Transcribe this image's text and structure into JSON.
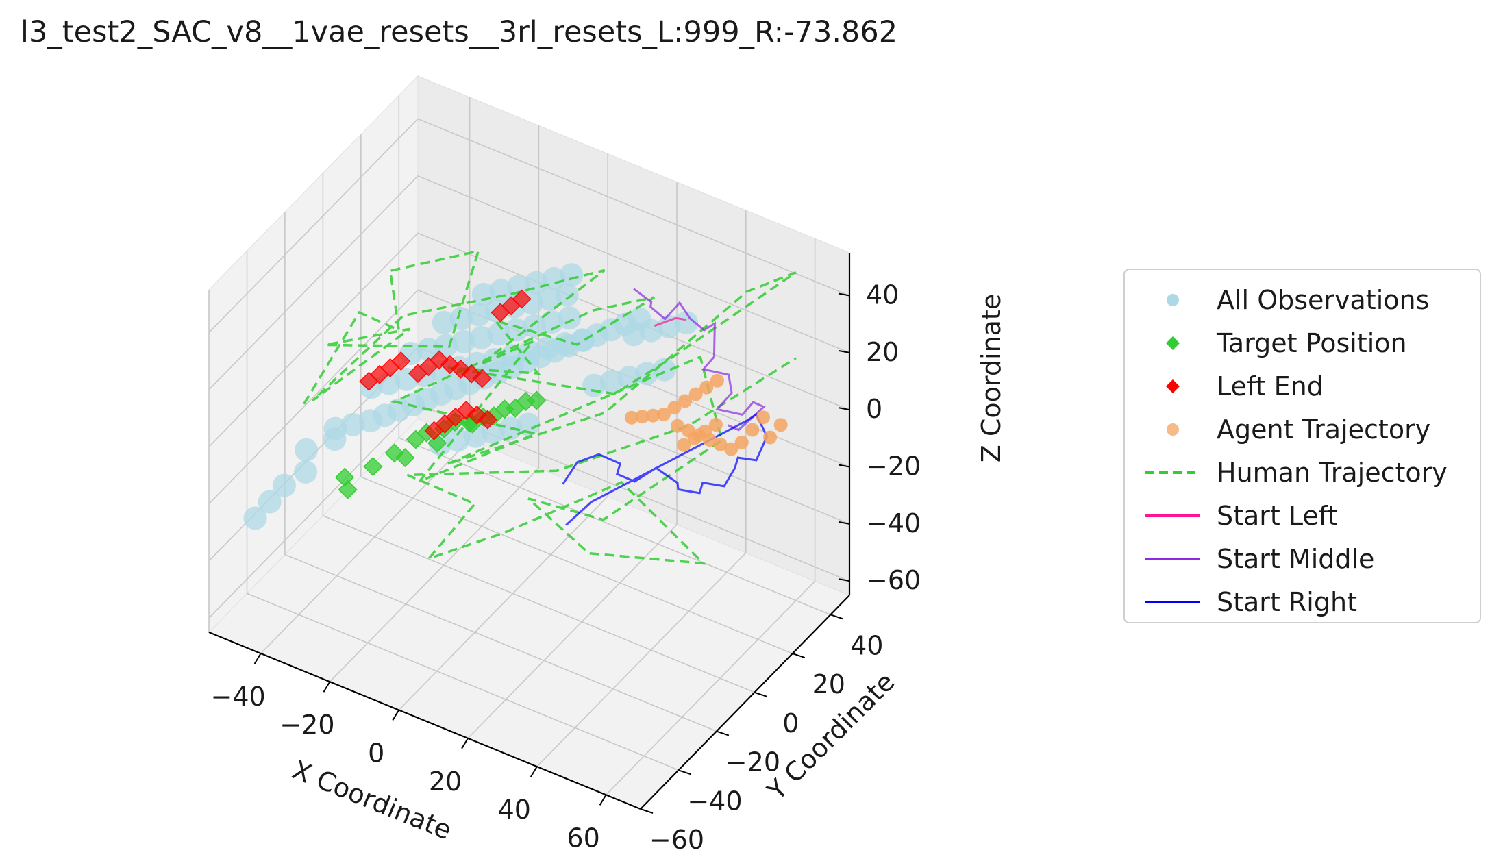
{
  "chart_data": {
    "type": "scatter",
    "projection": "3d",
    "title": "l3_test2_SAC_v8__1vae_resets__3rl_resets_L:999_R:-73.862",
    "xlabel": "X Coordinate",
    "ylabel": "Y Coordinate",
    "zlabel": "Z Coordinate",
    "xlim": [
      -55,
      70
    ],
    "ylim": [
      -60,
      50
    ],
    "zlim": [
      -65,
      55
    ],
    "xticks": [
      -40,
      -20,
      0,
      20,
      40,
      60
    ],
    "yticks": [
      -60,
      -40,
      -20,
      0,
      20,
      40
    ],
    "zticks": [
      -60,
      -40,
      -20,
      0,
      20,
      40
    ],
    "xtick_labels": [
      "−40",
      "−20",
      "0",
      "20",
      "40",
      "60"
    ],
    "ytick_labels": [
      "−60",
      "−40",
      "−20",
      "0",
      "20",
      "40"
    ],
    "ztick_labels": [
      "−60",
      "−40",
      "−20",
      "0",
      "20",
      "40"
    ],
    "grid": true,
    "legend_position": "right",
    "series": [
      {
        "name": "All Observations",
        "kind": "scatter",
        "marker": "circle",
        "color": "#add8e6",
        "points": [
          [
            -36,
            -28,
            -6
          ],
          [
            -32,
            -26,
            -4
          ],
          [
            -28,
            -24,
            -2
          ],
          [
            -25,
            -22,
            0
          ],
          [
            -22,
            -20,
            2
          ],
          [
            -19,
            -18,
            4
          ],
          [
            -16,
            -16,
            6
          ],
          [
            -13,
            -14,
            8
          ],
          [
            -10,
            -12,
            10
          ],
          [
            -7,
            -10,
            12
          ],
          [
            -4,
            -8,
            14
          ],
          [
            -1,
            -6,
            16
          ],
          [
            2,
            -4,
            18
          ],
          [
            5,
            -2,
            20
          ],
          [
            8,
            0,
            22
          ],
          [
            11,
            2,
            24
          ],
          [
            14,
            4,
            26
          ],
          [
            17,
            6,
            28
          ],
          [
            20,
            8,
            30
          ],
          [
            23,
            10,
            32
          ],
          [
            26,
            12,
            34
          ],
          [
            29,
            14,
            36
          ],
          [
            -30,
            -20,
            6
          ],
          [
            -26,
            -18,
            8
          ],
          [
            -22,
            -16,
            10
          ],
          [
            -18,
            -14,
            12
          ],
          [
            -14,
            -12,
            14
          ],
          [
            -10,
            -10,
            16
          ],
          [
            -6,
            -8,
            18
          ],
          [
            -2,
            -6,
            20
          ],
          [
            2,
            -4,
            22
          ],
          [
            6,
            -2,
            24
          ],
          [
            10,
            0,
            26
          ],
          [
            14,
            2,
            28
          ],
          [
            18,
            4,
            30
          ],
          [
            -24,
            -10,
            14
          ],
          [
            -20,
            -8,
            16
          ],
          [
            -16,
            -6,
            18
          ],
          [
            -12,
            -4,
            20
          ],
          [
            -8,
            -2,
            22
          ],
          [
            -4,
            0,
            24
          ],
          [
            0,
            2,
            26
          ],
          [
            4,
            4,
            28
          ],
          [
            8,
            6,
            30
          ],
          [
            12,
            8,
            32
          ],
          [
            -20,
            0,
            20
          ],
          [
            -16,
            2,
            22
          ],
          [
            -12,
            4,
            24
          ],
          [
            -8,
            6,
            26
          ],
          [
            -4,
            8,
            28
          ],
          [
            0,
            10,
            30
          ],
          [
            4,
            12,
            32
          ],
          [
            8,
            14,
            34
          ],
          [
            -14,
            10,
            26
          ],
          [
            -10,
            12,
            28
          ],
          [
            -6,
            14,
            30
          ],
          [
            -2,
            16,
            32
          ],
          [
            2,
            18,
            34
          ],
          [
            6,
            20,
            36
          ],
          [
            18,
            10,
            10
          ],
          [
            22,
            12,
            12
          ],
          [
            26,
            14,
            14
          ],
          [
            30,
            16,
            16
          ],
          [
            34,
            18,
            18
          ],
          [
            24,
            20,
            24
          ],
          [
            28,
            22,
            26
          ],
          [
            32,
            24,
            28
          ],
          [
            36,
            26,
            30
          ],
          [
            -38,
            -40,
            -14
          ],
          [
            -42,
            -44,
            -18
          ],
          [
            -44,
            -48,
            -22
          ],
          [
            -46,
            -52,
            -26
          ],
          [
            -40,
            -36,
            -10
          ],
          [
            -34,
            -32,
            -6
          ],
          [
            -10,
            -20,
            -4
          ],
          [
            -6,
            -18,
            -2
          ],
          [
            -2,
            -16,
            0
          ],
          [
            2,
            -14,
            2
          ],
          [
            6,
            -12,
            4
          ],
          [
            10,
            -10,
            6
          ]
        ]
      },
      {
        "name": "Target Position",
        "kind": "scatter",
        "marker": "diamond",
        "color": "#32cd32",
        "points": [
          [
            -30,
            -34,
            -16
          ],
          [
            -28,
            -36,
            -18
          ],
          [
            -24,
            -30,
            -12
          ],
          [
            -20,
            -26,
            -8
          ],
          [
            -16,
            -22,
            -4
          ],
          [
            -14,
            -20,
            -2
          ],
          [
            -10,
            -18,
            0
          ],
          [
            -8,
            -16,
            2
          ],
          [
            -4,
            -14,
            2
          ],
          [
            -2,
            -12,
            4
          ],
          [
            0,
            -10,
            4
          ],
          [
            2,
            -8,
            6
          ],
          [
            4,
            -6,
            6
          ],
          [
            6,
            -4,
            8
          ],
          [
            -12,
            -18,
            -6
          ],
          [
            -18,
            -24,
            -10
          ],
          [
            -6,
            -12,
            0
          ],
          [
            8,
            -2,
            8
          ]
        ]
      },
      {
        "name": "Left End",
        "kind": "scatter",
        "marker": "diamond",
        "color": "#ff0000",
        "points": [
          [
            -22,
            -10,
            8
          ],
          [
            -20,
            -8,
            10
          ],
          [
            -18,
            -6,
            12
          ],
          [
            -16,
            -4,
            10
          ],
          [
            -14,
            -2,
            8
          ],
          [
            -12,
            0,
            6
          ],
          [
            -10,
            2,
            4
          ],
          [
            -12,
            -14,
            -2
          ],
          [
            -10,
            -12,
            0
          ],
          [
            -8,
            -10,
            2
          ],
          [
            -6,
            -8,
            0
          ],
          [
            -4,
            -6,
            -2
          ],
          [
            -14,
            -16,
            -4
          ],
          [
            -34,
            -14,
            2
          ],
          [
            -32,
            -12,
            4
          ],
          [
            -30,
            -10,
            6
          ],
          [
            -28,
            -8,
            8
          ],
          [
            -8,
            8,
            24
          ],
          [
            -6,
            10,
            26
          ],
          [
            -4,
            12,
            28
          ]
        ]
      },
      {
        "name": "Agent Trajectory",
        "kind": "scatter",
        "marker": "circle",
        "color": "#f4a460",
        "points": [
          [
            30,
            8,
            6
          ],
          [
            32,
            10,
            6
          ],
          [
            34,
            12,
            6
          ],
          [
            36,
            14,
            6
          ],
          [
            38,
            16,
            8
          ],
          [
            40,
            18,
            10
          ],
          [
            42,
            20,
            12
          ],
          [
            44,
            22,
            14
          ],
          [
            46,
            24,
            16
          ],
          [
            40,
            14,
            4
          ],
          [
            42,
            16,
            2
          ],
          [
            44,
            18,
            0
          ],
          [
            46,
            20,
            -2
          ],
          [
            48,
            22,
            -4
          ],
          [
            50,
            24,
            -6
          ],
          [
            52,
            26,
            -4
          ],
          [
            54,
            28,
            0
          ],
          [
            56,
            30,
            4
          ],
          [
            44,
            10,
            2
          ],
          [
            46,
            12,
            4
          ],
          [
            48,
            14,
            6
          ],
          [
            50,
            16,
            8
          ],
          [
            58,
            30,
            -2
          ],
          [
            60,
            32,
            2
          ]
        ]
      },
      {
        "name": "Human Trajectory",
        "kind": "line",
        "linestyle": "dashed",
        "color": "#32cd32",
        "points": [
          [
            -44,
            -30,
            0
          ],
          [
            -28,
            -30,
            40
          ],
          [
            -22,
            -20,
            30
          ],
          [
            -30,
            -10,
            40
          ],
          [
            -10,
            0,
            50
          ],
          [
            -14,
            -8,
            20
          ],
          [
            -40,
            -26,
            20
          ],
          [
            -20,
            -18,
            30
          ],
          [
            -36,
            -40,
            12
          ],
          [
            -24,
            -14,
            30
          ],
          [
            0,
            0,
            40
          ],
          [
            20,
            12,
            50
          ],
          [
            -4,
            -10,
            20
          ],
          [
            8,
            -4,
            30
          ],
          [
            -16,
            -20,
            -20
          ],
          [
            10,
            -6,
            0
          ],
          [
            -20,
            -26,
            10
          ],
          [
            20,
            6,
            40
          ],
          [
            30,
            20,
            40
          ],
          [
            12,
            12,
            20
          ],
          [
            -4,
            -2,
            30
          ],
          [
            4,
            6,
            10
          ],
          [
            -10,
            -16,
            20
          ],
          [
            24,
            10,
            10
          ],
          [
            34,
            20,
            20
          ],
          [
            60,
            40,
            50
          ],
          [
            48,
            36,
            40
          ],
          [
            20,
            12,
            0
          ],
          [
            -8,
            -20,
            -10
          ],
          [
            40,
            26,
            20
          ],
          [
            44,
            30,
            -10
          ],
          [
            24,
            4,
            -30
          ],
          [
            10,
            -10,
            -20
          ],
          [
            22,
            0,
            -40
          ],
          [
            42,
            24,
            -50
          ],
          [
            26,
            10,
            -20
          ],
          [
            6,
            -16,
            -30
          ],
          [
            -10,
            -26,
            -40
          ],
          [
            0,
            -20,
            -20
          ],
          [
            -14,
            -30,
            -10
          ],
          [
            16,
            -6,
            -10
          ],
          [
            40,
            20,
            0
          ],
          [
            60,
            40,
            20
          ]
        ]
      },
      {
        "name": "Start Left",
        "kind": "line",
        "linestyle": "solid",
        "color": "#ff1493",
        "points": [
          [
            30,
            20,
            30
          ],
          [
            32,
            22,
            31
          ],
          [
            34,
            24,
            32
          ],
          [
            36,
            26,
            31
          ]
        ]
      },
      {
        "name": "Start Middle",
        "kind": "line",
        "linestyle": "solid",
        "color": "#8a2be2",
        "points": [
          [
            24,
            20,
            40
          ],
          [
            28,
            22,
            36
          ],
          [
            30,
            18,
            38
          ],
          [
            32,
            22,
            32
          ],
          [
            34,
            26,
            36
          ],
          [
            36,
            28,
            30
          ],
          [
            38,
            24,
            34
          ],
          [
            40,
            28,
            28
          ],
          [
            42,
            30,
            30
          ],
          [
            44,
            26,
            22
          ],
          [
            42,
            24,
            18
          ],
          [
            46,
            30,
            14
          ],
          [
            48,
            28,
            10
          ],
          [
            46,
            24,
            6
          ],
          [
            50,
            30,
            2
          ],
          [
            52,
            32,
            6
          ],
          [
            54,
            34,
            4
          ],
          [
            50,
            28,
            -2
          ],
          [
            48,
            26,
            0
          ]
        ]
      },
      {
        "name": "Start Right",
        "kind": "line",
        "linestyle": "solid",
        "color": "#0000ff",
        "points": [
          [
            20,
            -10,
            -10
          ],
          [
            22,
            -6,
            -4
          ],
          [
            26,
            -2,
            -2
          ],
          [
            30,
            2,
            -6
          ],
          [
            28,
            4,
            -12
          ],
          [
            32,
            6,
            -14
          ],
          [
            36,
            10,
            -10
          ],
          [
            40,
            14,
            -16
          ],
          [
            38,
            18,
            -22
          ],
          [
            42,
            22,
            -24
          ],
          [
            44,
            20,
            -18
          ],
          [
            48,
            24,
            -20
          ],
          [
            50,
            26,
            -14
          ],
          [
            52,
            24,
            -8
          ],
          [
            54,
            30,
            -12
          ],
          [
            56,
            32,
            -4
          ],
          [
            54,
            30,
            4
          ],
          [
            52,
            28,
            2
          ],
          [
            26,
            -6,
            -16
          ],
          [
            22,
            -12,
            -22
          ]
        ]
      }
    ]
  },
  "colors": {
    "all_observations": "#add8e6",
    "target_position": "#32cd32",
    "left_end": "#ff0000",
    "agent_trajectory": "#f4a460",
    "human_trajectory": "#32cd32",
    "start_left": "#ff1493",
    "start_middle": "#8a2be2",
    "start_right": "#0000ff"
  }
}
